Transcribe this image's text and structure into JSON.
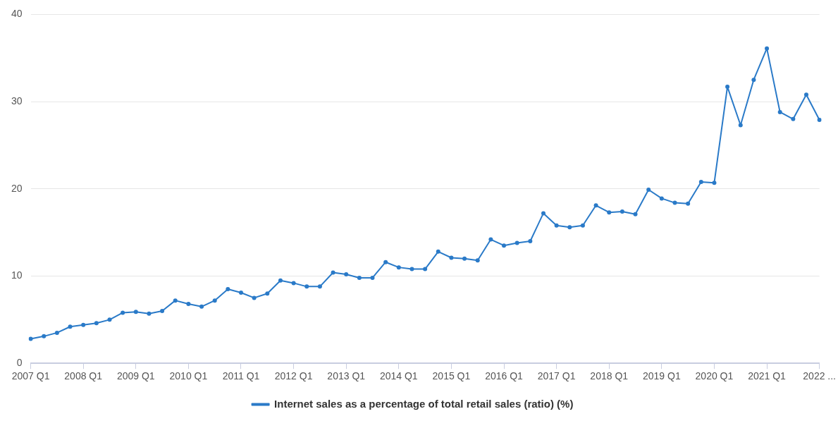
{
  "chart_data": {
    "type": "line",
    "categories": [
      "2007 Q1",
      null,
      null,
      null,
      "2008 Q1",
      null,
      null,
      null,
      "2009 Q1",
      null,
      null,
      null,
      "2010 Q1",
      null,
      null,
      null,
      "2011 Q1",
      null,
      null,
      null,
      "2012 Q1",
      null,
      null,
      null,
      "2013 Q1",
      null,
      null,
      null,
      "2014 Q1",
      null,
      null,
      null,
      "2015 Q1",
      null,
      null,
      null,
      "2016 Q1",
      null,
      null,
      null,
      "2017 Q1",
      null,
      null,
      null,
      "2018 Q1",
      null,
      null,
      null,
      "2019 Q1",
      null,
      null,
      null,
      "2020 Q1",
      null,
      null,
      null,
      "2021 Q1",
      null,
      null,
      null,
      "2022 ..."
    ],
    "series": [
      {
        "name": "Internet sales as a percentage of total retail sales (ratio) (%)",
        "color": "#2a7ac8",
        "values": [
          2.8,
          3.1,
          3.5,
          4.2,
          4.4,
          4.6,
          5.0,
          5.8,
          5.9,
          5.7,
          6.0,
          7.2,
          6.8,
          6.5,
          7.2,
          8.5,
          8.1,
          7.5,
          8.0,
          9.5,
          9.2,
          8.8,
          8.8,
          10.4,
          10.2,
          9.8,
          9.8,
          11.6,
          11.0,
          10.8,
          10.8,
          12.8,
          12.1,
          12.0,
          11.8,
          14.2,
          13.5,
          13.8,
          14.0,
          17.2,
          15.8,
          15.6,
          15.8,
          18.1,
          17.3,
          17.4,
          17.1,
          19.9,
          18.9,
          18.4,
          18.3,
          20.8,
          20.7,
          31.7,
          27.3,
          32.5,
          36.1,
          28.8,
          28.0,
          30.8,
          27.9
        ]
      }
    ],
    "ylim": [
      0,
      40
    ],
    "yticks": [
      0,
      10,
      20,
      30,
      40
    ],
    "grid": "y",
    "legend": "bottom",
    "marker": "circle",
    "line_style": "solid"
  }
}
